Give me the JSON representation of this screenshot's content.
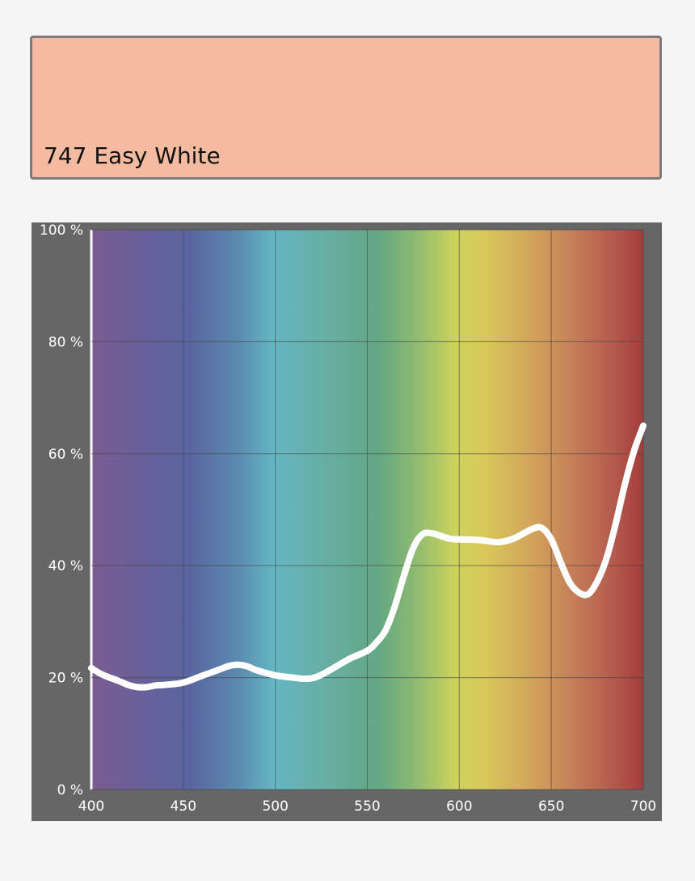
{
  "swatch": {
    "title": "747 Easy White",
    "color": "#f5bba1"
  },
  "chart_data": {
    "type": "line",
    "title": "",
    "xlabel": "",
    "ylabel": "",
    "xlim": [
      400,
      700
    ],
    "ylim": [
      0,
      100
    ],
    "x_ticks": [
      400,
      450,
      500,
      550,
      600,
      650,
      700
    ],
    "y_ticks": [
      0,
      20,
      40,
      60,
      80,
      100
    ],
    "x_tick_labels": [
      "400",
      "450",
      "500",
      "550",
      "600",
      "650",
      "700"
    ],
    "y_tick_labels": [
      "0 %",
      "20 %",
      "40 %",
      "60 %",
      "80 %",
      "100 %"
    ],
    "grid": true,
    "background": "visible spectrum gradient",
    "line_color": "#ffffff",
    "series": [
      {
        "x": [
          400,
          405,
          410,
          415,
          420,
          425,
          430,
          435,
          440,
          450,
          460,
          470,
          475,
          480,
          485,
          490,
          500,
          510,
          515,
          520,
          525,
          530,
          540,
          550,
          555,
          560,
          565,
          570,
          575,
          580,
          585,
          590,
          595,
          600,
          610,
          620,
          625,
          630,
          640,
          645,
          650,
          655,
          660,
          665,
          670,
          675,
          680,
          685,
          690,
          695,
          700
        ],
        "values": [
          21.7,
          20.7,
          20.0,
          19.4,
          18.7,
          18.3,
          18.3,
          18.6,
          18.7,
          19.1,
          20.3,
          21.5,
          22.1,
          22.3,
          22.0,
          21.3,
          20.4,
          20.0,
          19.8,
          19.9,
          20.5,
          21.4,
          23.3,
          24.8,
          26.3,
          28.5,
          32.8,
          38.3,
          43.2,
          45.6,
          45.8,
          45.3,
          44.8,
          44.7,
          44.6,
          44.2,
          44.4,
          44.9,
          46.6,
          46.7,
          44.7,
          40.7,
          37.0,
          35.2,
          34.9,
          37.2,
          41.3,
          47.5,
          54.5,
          60.5,
          65.0
        ]
      }
    ]
  }
}
